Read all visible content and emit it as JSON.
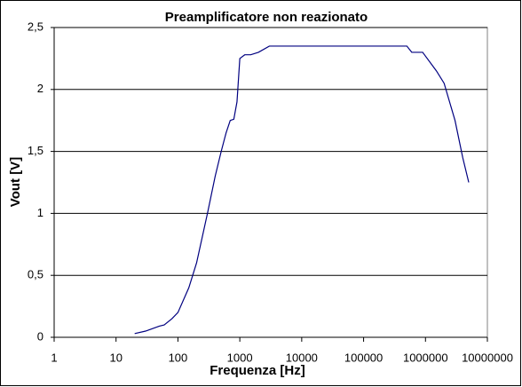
{
  "chart_data": {
    "type": "line",
    "title": "Preamplificatore non reazionato",
    "x_label": "Frequenza [Hz]",
    "y_label": "Vout [V]",
    "x": [
      20,
      30,
      50,
      60,
      80,
      100,
      150,
      200,
      300,
      400,
      500,
      600,
      700,
      800,
      900,
      1000,
      1200,
      1500,
      2000,
      3000,
      10000,
      100000,
      500000,
      600000,
      900000,
      1500000,
      2000000,
      3000000,
      4000000,
      5000000
    ],
    "series": [
      {
        "name": "Vout",
        "color": "#000080",
        "values": [
          0.03,
          0.05,
          0.09,
          0.1,
          0.15,
          0.2,
          0.4,
          0.6,
          1.0,
          1.3,
          1.5,
          1.65,
          1.75,
          1.76,
          1.9,
          2.25,
          2.28,
          2.28,
          2.3,
          2.35,
          2.35,
          2.35,
          2.35,
          2.3,
          2.3,
          2.15,
          2.05,
          1.75,
          1.45,
          1.25
        ]
      }
    ],
    "x_log": true,
    "xlim": [
      1,
      10000000
    ],
    "xticks": [
      1,
      10,
      100,
      1000,
      10000,
      100000,
      1000000,
      10000000
    ],
    "ylim": [
      0,
      2.5
    ],
    "yticks": [
      0,
      {
        "value": 0.5,
        "label": "0,5"
      },
      1,
      {
        "value": 1.5,
        "label": "1,5"
      },
      2,
      {
        "value": 2.5,
        "label": "2,5"
      }
    ],
    "grid": true
  }
}
